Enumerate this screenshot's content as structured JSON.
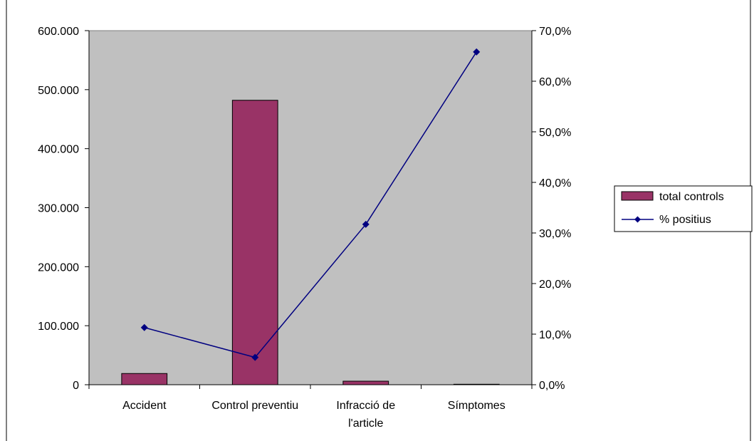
{
  "chart_data": {
    "type": "bar",
    "categories": [
      [
        "Accident"
      ],
      [
        "Control preventiu"
      ],
      [
        "Infracció de",
        "l'article"
      ],
      [
        "Símptomes"
      ]
    ],
    "series": [
      {
        "name": "total controls",
        "type": "bar",
        "axis": "left",
        "values": [
          19000,
          482000,
          6000,
          800
        ]
      },
      {
        "name": "% positius",
        "type": "line",
        "axis": "right",
        "values": [
          11.3,
          5.4,
          31.7,
          65.8
        ]
      }
    ],
    "left_axis": {
      "ylim": [
        0,
        600000
      ],
      "ticks": [
        0,
        100000,
        200000,
        300000,
        400000,
        500000,
        600000
      ],
      "tick_labels": [
        "0",
        "100.000",
        "200.000",
        "300.000",
        "400.000",
        "500.000",
        "600.000"
      ]
    },
    "right_axis": {
      "ylim": [
        0,
        70
      ],
      "ticks": [
        0,
        10,
        20,
        30,
        40,
        50,
        60,
        70
      ],
      "tick_labels": [
        "0,0%",
        "10,0%",
        "20,0%",
        "30,0%",
        "40,0%",
        "50,0%",
        "60,0%",
        "70,0%"
      ]
    },
    "grid": false,
    "legend_position": "right",
    "colors": {
      "bar": "#993366",
      "line": "#000080",
      "plot_background": "#c0c0c0"
    }
  }
}
